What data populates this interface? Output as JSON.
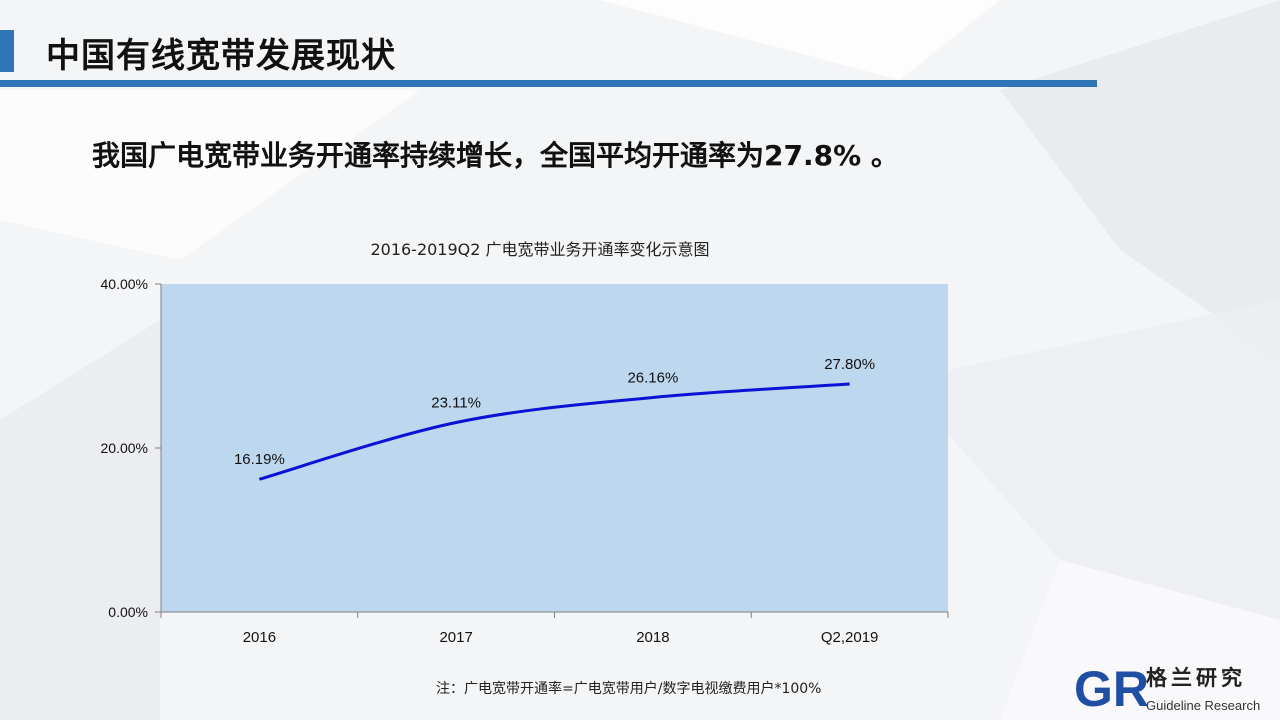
{
  "page": {
    "title": "中国有线宽带发展现状",
    "headline": "我国广电宽带业务开通率持续增长，全国平均开通率为27.8% 。",
    "footnote": "注：广电宽带开通率=广电宽带用户/数字电视缴费用户*100%",
    "logo_cn": "格兰研究",
    "logo_en": "Guideline Research",
    "logo_mark": "GR"
  },
  "colors": {
    "accent": "#2e75b6",
    "plot_area": "#bdd7ee",
    "line": "#0b12d6"
  },
  "chart_data": {
    "type": "line",
    "title": "2016-2019Q2 广电宽带业务开通率变化示意图",
    "categories": [
      "2016",
      "2017",
      "2018",
      "Q2,2019"
    ],
    "series": [
      {
        "values": [
          16.19,
          23.11,
          26.16,
          27.8
        ],
        "labels": [
          "16.19%",
          "23.11%",
          "26.16%",
          "27.80%"
        ]
      }
    ],
    "ylim": [
      0,
      40
    ],
    "yticks": [
      0,
      20,
      40
    ],
    "ytick_labels": [
      "0.00%",
      "20.00%",
      "40.00%"
    ],
    "grid": false,
    "smooth": true
  }
}
